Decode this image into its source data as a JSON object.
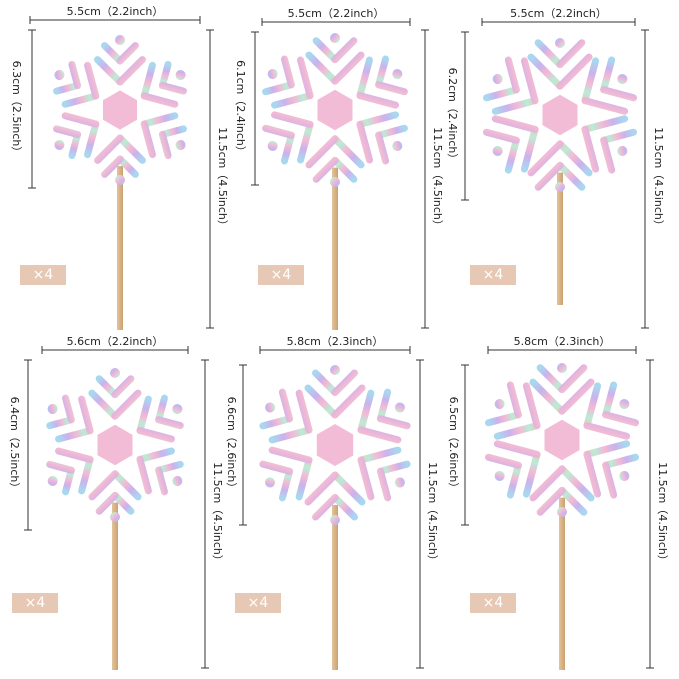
{
  "panels": [
    {
      "width": "5.5cm（2.2inch）",
      "height": "6.3cm（2.5inch）",
      "total": "11.5cm（4.5inch）",
      "count": "×4"
    },
    {
      "width": "5.5cm（2.2inch）",
      "height": "6.1cm（2.4inch）",
      "total": "11.5cm（4.5inch）",
      "count": "×4"
    },
    {
      "width": "5.5cm（2.2inch）",
      "height": "6.2cm（2.4inch）",
      "total": "11.5cm（4.5inch）",
      "count": "×4"
    },
    {
      "width": "5.6cm（2.2inch）",
      "height": "6.4cm（2.5inch）",
      "total": "11.5cm（4.5inch）",
      "count": "×4"
    },
    {
      "width": "5.8cm（2.3inch）",
      "height": "6.6cm（2.6inch）",
      "total": "11.5cm（4.5inch）",
      "count": "×4"
    },
    {
      "width": "5.8cm（2.3inch）",
      "height": "6.5cm（2.6inch）",
      "total": "11.5cm（4.5inch）",
      "count": "×4"
    }
  ]
}
